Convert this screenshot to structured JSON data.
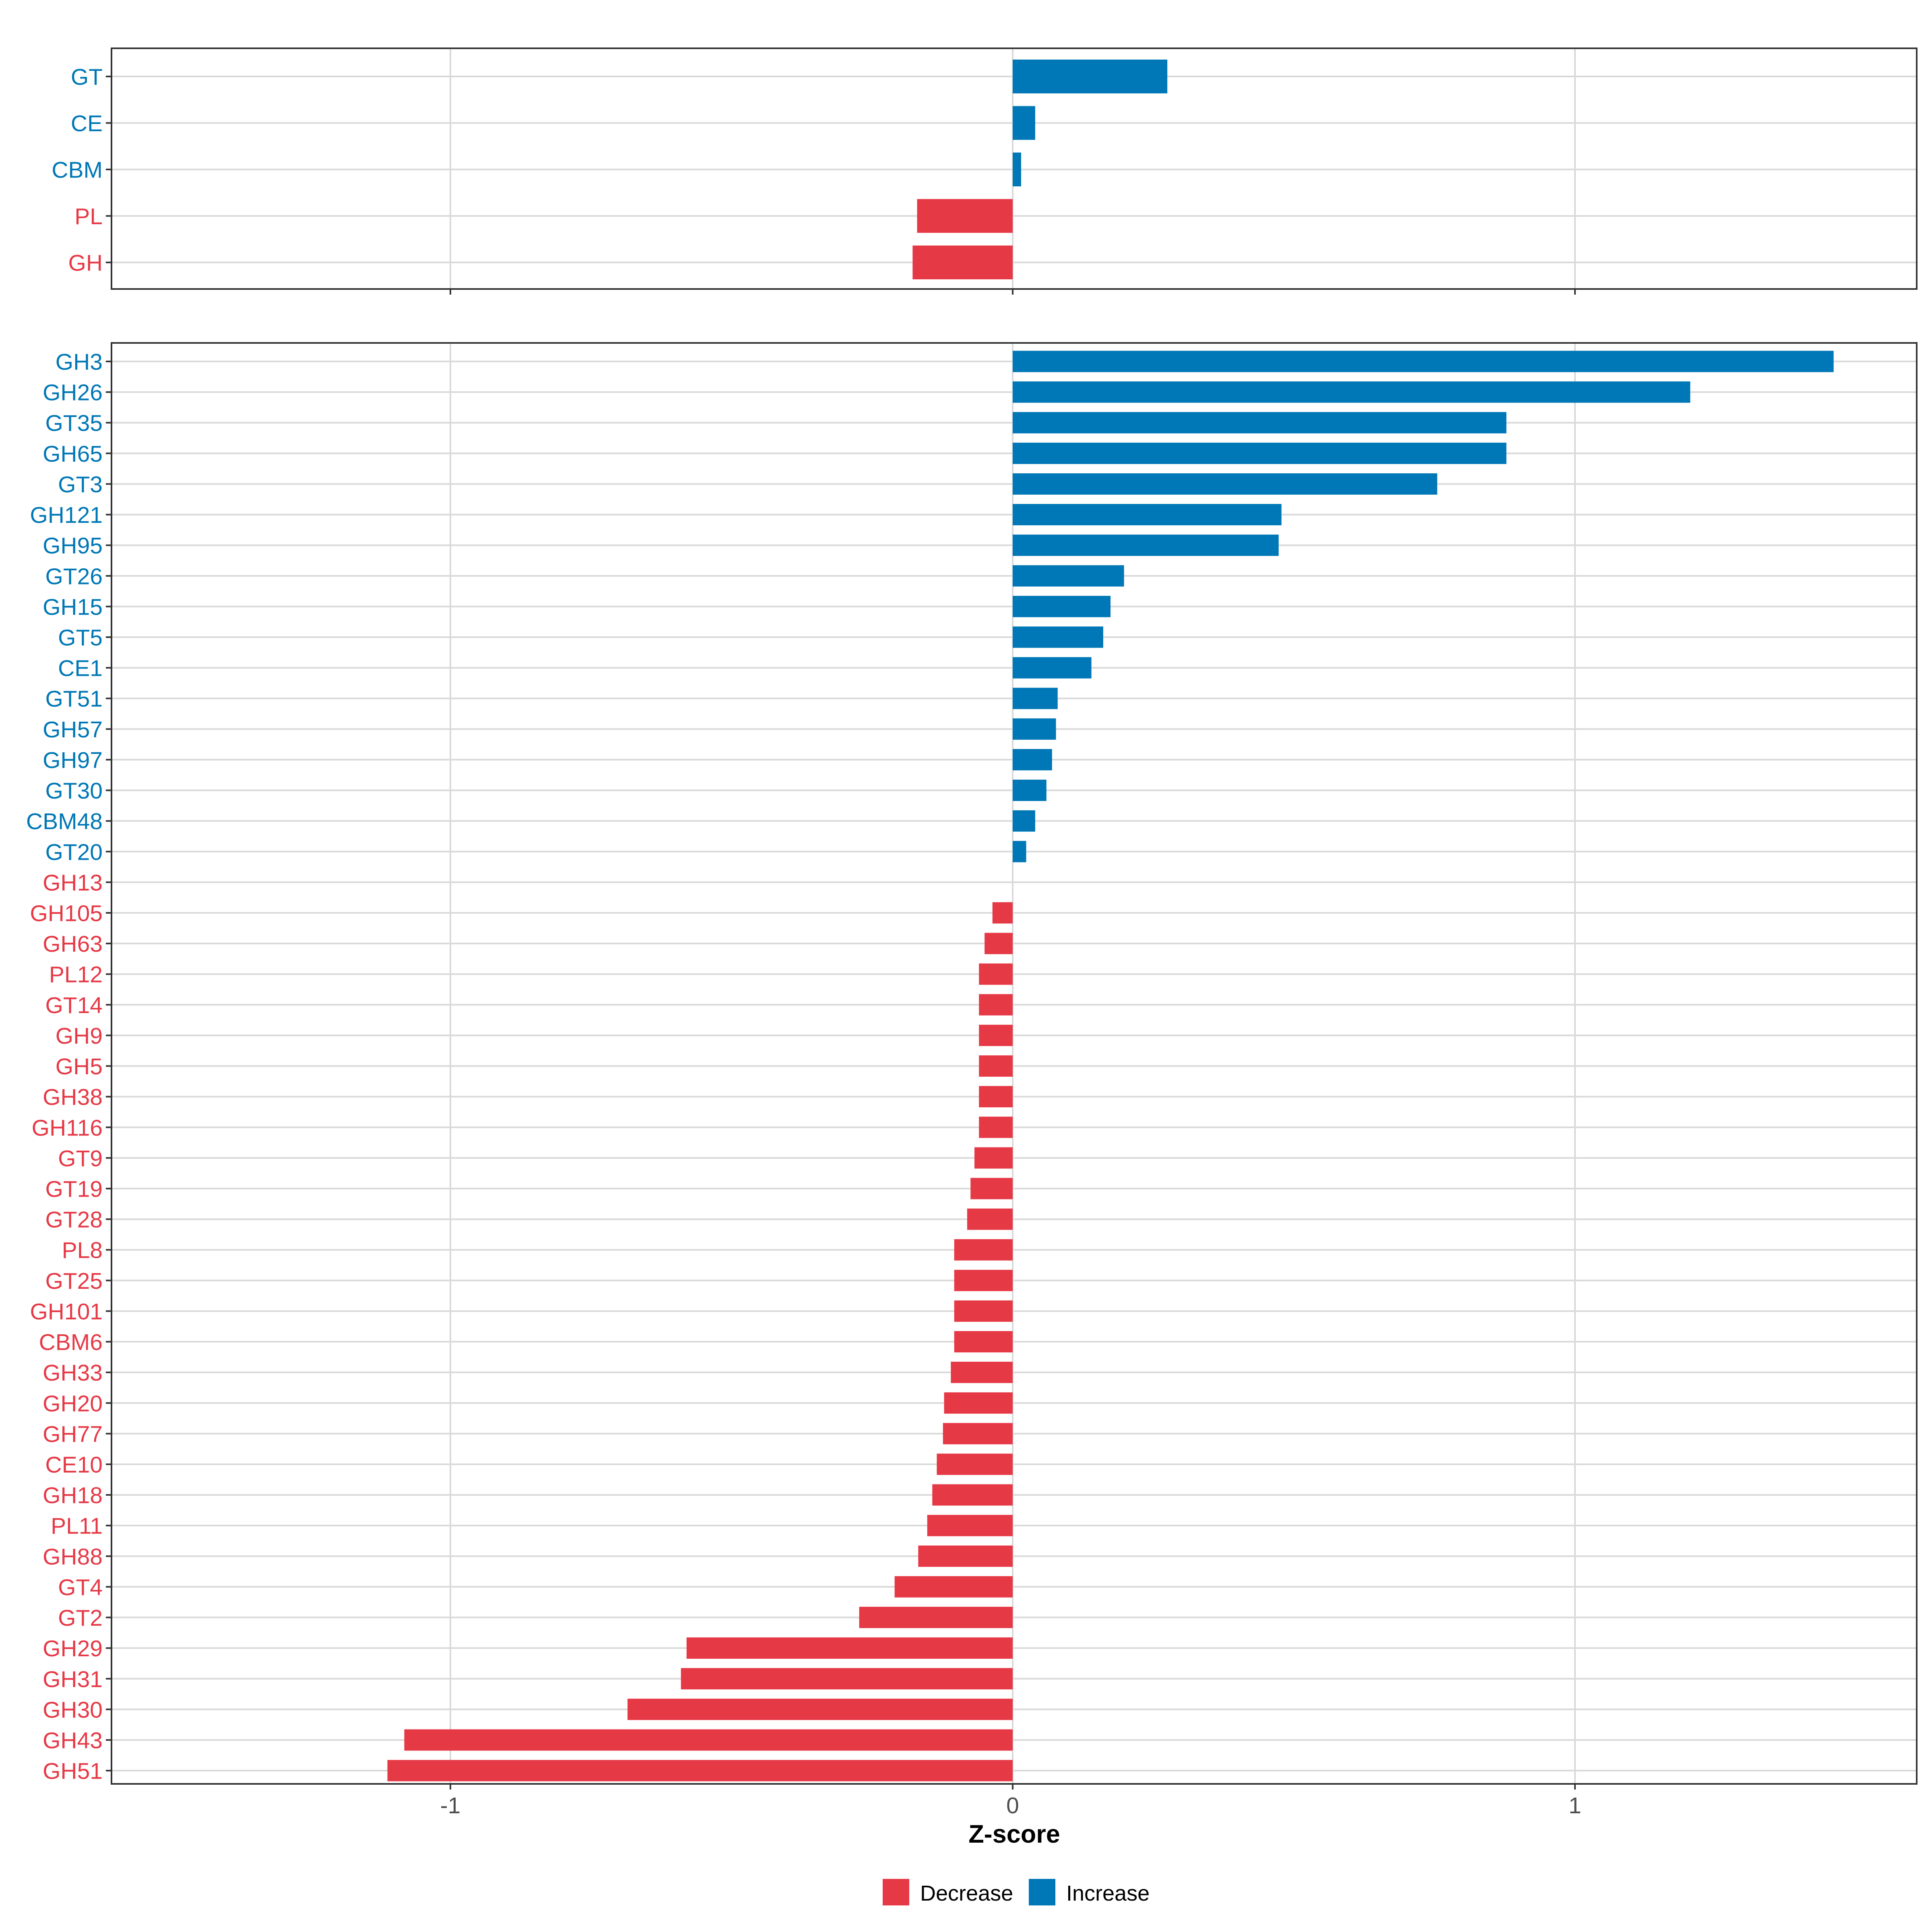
{
  "chart_data": [
    {
      "panel": "top",
      "type": "bar",
      "orientation": "horizontal",
      "categories": [
        "GT",
        "CE",
        "CBM",
        "PL",
        "GH"
      ],
      "values": [
        0.275,
        0.04,
        0.015,
        -0.17,
        -0.178
      ],
      "xlim": [
        -1.6,
        1.6
      ],
      "x_ticks": [
        -1,
        0,
        1
      ],
      "grid": true
    },
    {
      "panel": "bottom",
      "type": "bar",
      "orientation": "horizontal",
      "categories": [
        "GH3",
        "GH26",
        "GT35",
        "GH65",
        "GT3",
        "GH121",
        "GH95",
        "GT26",
        "GH15",
        "GT5",
        "CE1",
        "GT51",
        "GH57",
        "GH97",
        "GT30",
        "CBM48",
        "GT20",
        "GH13",
        "GH105",
        "GH63",
        "PL12",
        "GT14",
        "GH9",
        "GH5",
        "GH38",
        "GH116",
        "GT9",
        "GT19",
        "GT28",
        "PL8",
        "GT25",
        "GH101",
        "CBM6",
        "GH33",
        "GH20",
        "GH77",
        "CE10",
        "GH18",
        "PL11",
        "GH88",
        "GT4",
        "GT2",
        "GH29",
        "GH31",
        "GH30",
        "GH43",
        "GH51"
      ],
      "values": [
        1.46,
        1.205,
        0.878,
        0.878,
        0.755,
        0.478,
        0.473,
        0.198,
        0.174,
        0.161,
        0.14,
        0.08,
        0.077,
        0.07,
        0.06,
        0.04,
        0.024,
        0.0,
        -0.036,
        -0.05,
        -0.06,
        -0.06,
        -0.06,
        -0.06,
        -0.06,
        -0.06,
        -0.068,
        -0.075,
        -0.081,
        -0.104,
        -0.104,
        -0.104,
        -0.104,
        -0.11,
        -0.122,
        -0.124,
        -0.135,
        -0.143,
        -0.152,
        -0.168,
        -0.21,
        -0.273,
        -0.58,
        -0.59,
        -0.685,
        -1.082,
        -1.112
      ],
      "xlim": [
        -1.6,
        1.6
      ],
      "x_ticks": [
        -1,
        0,
        1
      ],
      "x_tick_labels": [
        "-1",
        "0",
        "1"
      ],
      "xlabel": "Z-score",
      "grid": true
    }
  ],
  "legend": {
    "placement": "bottom",
    "items": [
      {
        "label": "Decrease",
        "color": "#e63946"
      },
      {
        "label": "Increase",
        "color": "#0077b6"
      }
    ]
  },
  "colors": {
    "decrease": "#e63946",
    "increase": "#0077b6",
    "grid": "#d9d9d9",
    "axis": "#333333",
    "tick_text": "#4d4d4d"
  }
}
